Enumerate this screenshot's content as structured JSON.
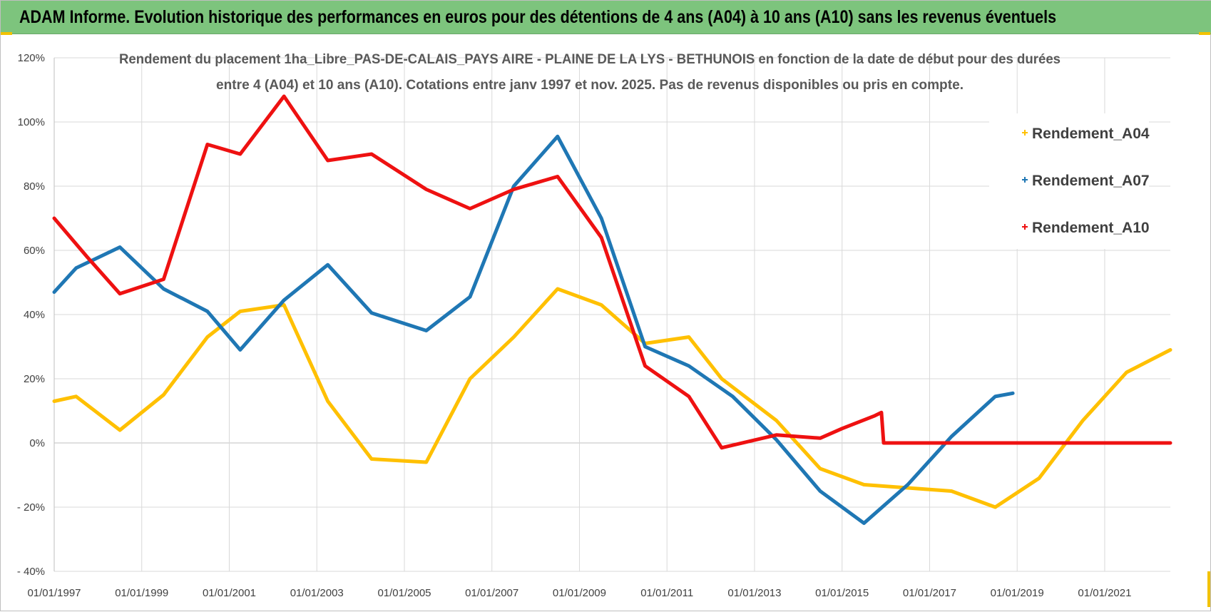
{
  "header": {
    "title": "ADAM Informe. Evolution historique des performances en euros pour des détentions de 4 ans (A04) à 10 ans (A10) sans les revenus éventuels"
  },
  "colors": {
    "banner": "#7dc47d",
    "A04": "#ffc000",
    "A07": "#1f77b4",
    "A10": "#ee1111",
    "grid": "#d9d9d9"
  },
  "chart_data": {
    "type": "line",
    "title": [
      "Rendement du placement 1ha_Libre_PAS-DE-CALAIS_PAYS AIRE - PLAINE DE LA LYS - BETHUNOIS en fonction de la date de début pour des durées",
      "entre 4 (A04) et 10 ans (A10).  Cotations entre janv 1997 et nov. 2025. Pas de revenus disponibles ou pris en compte."
    ],
    "xlabel": "",
    "ylabel": "",
    "x_range": [
      1997.0,
      2022.5
    ],
    "ylim": [
      -40,
      120
    ],
    "y_ticks": [
      -40,
      -20,
      0,
      20,
      40,
      60,
      80,
      100,
      120
    ],
    "y_tick_labels": [
      "- 40%",
      "- 20%",
      "0%",
      "20%",
      "40%",
      "60%",
      "80%",
      "100%",
      "120%"
    ],
    "x_ticks": [
      1997,
      1999,
      2001,
      2003,
      2005,
      2007,
      2009,
      2011,
      2013,
      2015,
      2017,
      2019,
      2021
    ],
    "x_tick_labels": [
      "01/01/1997",
      "01/01/1999",
      "01/01/2001",
      "01/01/2003",
      "01/01/2005",
      "01/01/2007",
      "01/01/2009",
      "01/01/2011",
      "01/01/2013",
      "01/01/2015",
      "01/01/2017",
      "01/01/2019",
      "01/01/2021"
    ],
    "grid": true,
    "legend_position": "top-right",
    "series": [
      {
        "name": "Rendement_A04",
        "color": "#ffc000",
        "points": [
          [
            1997.0,
            13
          ],
          [
            1997.5,
            14.5
          ],
          [
            1998.5,
            4
          ],
          [
            1999.5,
            15
          ],
          [
            2000.5,
            33
          ],
          [
            2001.25,
            41
          ],
          [
            2002.25,
            43
          ],
          [
            2003.25,
            13
          ],
          [
            2004.25,
            -5
          ],
          [
            2005.5,
            -6
          ],
          [
            2006.5,
            20
          ],
          [
            2007.5,
            33
          ],
          [
            2008.5,
            48
          ],
          [
            2009.5,
            43
          ],
          [
            2010.5,
            31
          ],
          [
            2011.5,
            33
          ],
          [
            2012.25,
            20
          ],
          [
            2013.5,
            7
          ],
          [
            2014.5,
            -8
          ],
          [
            2015.5,
            -13
          ],
          [
            2016.5,
            -14
          ],
          [
            2017.5,
            -15
          ],
          [
            2018.5,
            -20
          ],
          [
            2019.5,
            -11
          ],
          [
            2020.5,
            7
          ],
          [
            2021.5,
            22
          ],
          [
            2022.5,
            29
          ]
        ]
      },
      {
        "name": "Rendement_A07",
        "color": "#1f77b4",
        "points": [
          [
            1997.0,
            47
          ],
          [
            1997.5,
            54.5
          ],
          [
            1998.5,
            61
          ],
          [
            1999.5,
            48
          ],
          [
            2000.5,
            41
          ],
          [
            2001.25,
            29
          ],
          [
            2002.25,
            44.5
          ],
          [
            2003.25,
            55.5
          ],
          [
            2004.25,
            40.5
          ],
          [
            2005.5,
            35
          ],
          [
            2006.5,
            45.5
          ],
          [
            2007.5,
            80
          ],
          [
            2008.5,
            95.5
          ],
          [
            2009.5,
            70
          ],
          [
            2010.5,
            30
          ],
          [
            2011.5,
            24
          ],
          [
            2012.5,
            14.5
          ],
          [
            2013.5,
            1
          ],
          [
            2014.5,
            -15
          ],
          [
            2015.5,
            -25
          ],
          [
            2016.5,
            -13
          ],
          [
            2017.5,
            2
          ],
          [
            2018.5,
            14.5
          ],
          [
            2018.9,
            15.5
          ]
        ]
      },
      {
        "name": "Rendement_A10",
        "color": "#ee1111",
        "points": [
          [
            1997.0,
            70
          ],
          [
            1997.75,
            58
          ],
          [
            1998.5,
            46.5
          ],
          [
            1999.5,
            51
          ],
          [
            2000.5,
            93
          ],
          [
            2001.25,
            90
          ],
          [
            2002.25,
            108
          ],
          [
            2003.25,
            88
          ],
          [
            2004.25,
            90
          ],
          [
            2005.5,
            79
          ],
          [
            2006.5,
            73
          ],
          [
            2007.5,
            79
          ],
          [
            2008.5,
            83
          ],
          [
            2009.5,
            64
          ],
          [
            2010.5,
            24
          ],
          [
            2011.5,
            14.5
          ],
          [
            2012.25,
            -1.5
          ],
          [
            2013.5,
            2.5
          ],
          [
            2014.5,
            1.5
          ],
          [
            2015.0,
            4.5
          ],
          [
            2015.75,
            8.5
          ],
          [
            2015.9,
            9.5
          ],
          [
            2015.95,
            0
          ],
          [
            2016.5,
            0
          ],
          [
            2017.5,
            0
          ],
          [
            2018.5,
            0
          ],
          [
            2019.5,
            0
          ],
          [
            2020.5,
            0
          ],
          [
            2021.5,
            0
          ],
          [
            2022.5,
            0
          ]
        ]
      }
    ]
  }
}
